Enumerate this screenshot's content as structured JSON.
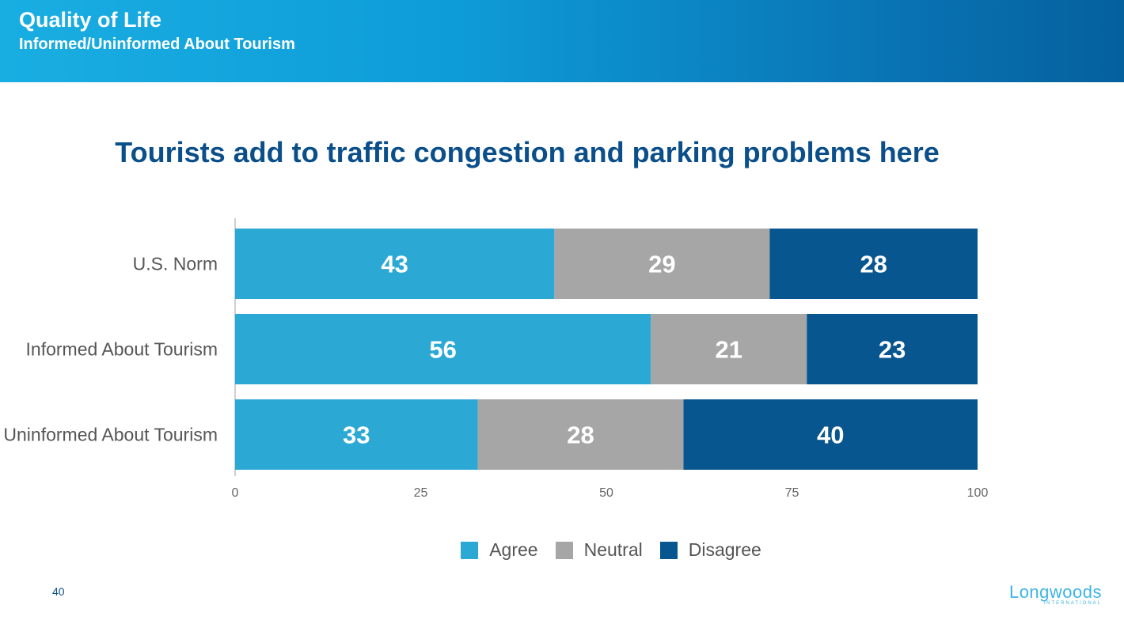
{
  "header": {
    "title": "Quality of Life",
    "subtitle": "Informed/Uninformed About Tourism"
  },
  "chart_data": {
    "type": "bar",
    "orientation": "horizontal",
    "stacked": true,
    "title": "Tourists add to traffic congestion and parking problems here",
    "categories": [
      "U.S. Norm",
      "Informed About Tourism",
      "Uninformed About Tourism"
    ],
    "series": [
      {
        "name": "Agree",
        "values": [
          43,
          56,
          33
        ],
        "color": "#2ba8d4"
      },
      {
        "name": "Neutral",
        "values": [
          29,
          21,
          28
        ],
        "color": "#a6a6a6"
      },
      {
        "name": "Disagree",
        "values": [
          28,
          23,
          40
        ],
        "color": "#08568f"
      }
    ],
    "xlim": [
      0,
      100
    ],
    "xticks": [
      0,
      25,
      50,
      75,
      100
    ],
    "grid": false,
    "legend_position": "bottom"
  },
  "footer": {
    "page_number": "40",
    "logo_text": "Longwoods",
    "logo_sub": "INTERNATIONAL"
  }
}
